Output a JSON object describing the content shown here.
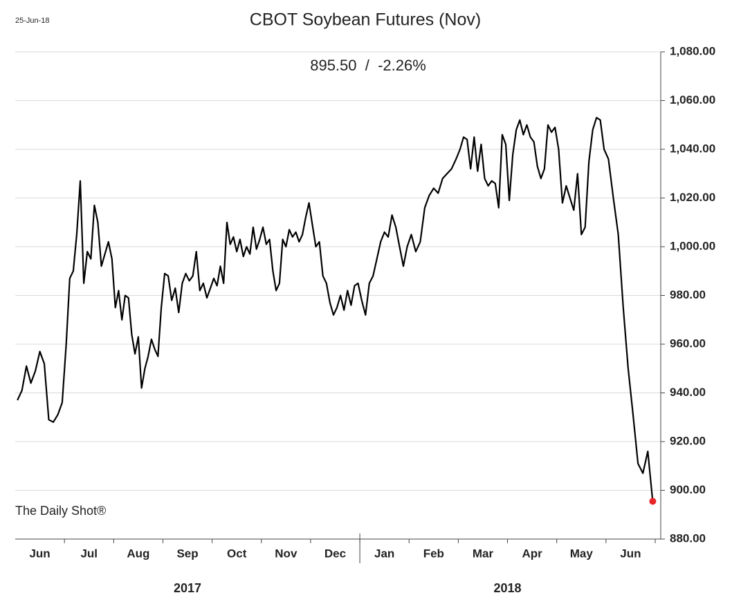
{
  "chart_data": {
    "type": "line",
    "date_label": "25-Jun-18",
    "title": "CBOT Soybean Futures (Nov)",
    "subtitle": "895.50  /  -2.26%",
    "source": "The Daily Shot®",
    "categories": [
      "Jun",
      "Jul",
      "Aug",
      "Sep",
      "Oct",
      "Nov",
      "Dec",
      "Jan",
      "Feb",
      "Mar",
      "Apr",
      "May",
      "Jun"
    ],
    "years": [
      "2017",
      "2018"
    ],
    "x": [
      "2017-06",
      "2017-06",
      "2017-06",
      "2017-06",
      "2017-06",
      "2017-06",
      "2017-06",
      "2017-06",
      "2017-06",
      "2017-06",
      "2017-06",
      "2017-07",
      "2017-07",
      "2017-07",
      "2017-07",
      "2017-07",
      "2017-07",
      "2017-07",
      "2017-07",
      "2017-07",
      "2017-07",
      "2017-07",
      "2017-07",
      "2017-07",
      "2017-07",
      "2017-08",
      "2017-08",
      "2017-08",
      "2017-08",
      "2017-08",
      "2017-08",
      "2017-08",
      "2017-08",
      "2017-08",
      "2017-08",
      "2017-08",
      "2017-08",
      "2017-08",
      "2017-08",
      "2017-08",
      "2017-09",
      "2017-09",
      "2017-09",
      "2017-09",
      "2017-09",
      "2017-09",
      "2017-09",
      "2017-09",
      "2017-09",
      "2017-09",
      "2017-09",
      "2017-09",
      "2017-09",
      "2017-09",
      "2017-10",
      "2017-10",
      "2017-10",
      "2017-10",
      "2017-10",
      "2017-10",
      "2017-10",
      "2017-10",
      "2017-10",
      "2017-10",
      "2017-10",
      "2017-10",
      "2017-10",
      "2017-10",
      "2017-10",
      "2017-11",
      "2017-11",
      "2017-11",
      "2017-11",
      "2017-11",
      "2017-11",
      "2017-11",
      "2017-11",
      "2017-11",
      "2017-11",
      "2017-11",
      "2017-11",
      "2017-11",
      "2017-11",
      "2017-11",
      "2017-12",
      "2017-12",
      "2017-12",
      "2017-12",
      "2017-12",
      "2017-12",
      "2017-12",
      "2017-12",
      "2017-12",
      "2017-12",
      "2017-12",
      "2017-12",
      "2017-12",
      "2017-12",
      "2018-01",
      "2018-01",
      "2018-01",
      "2018-01",
      "2018-01",
      "2018-01",
      "2018-01",
      "2018-01",
      "2018-01",
      "2018-01",
      "2018-01",
      "2018-01",
      "2018-01",
      "2018-02",
      "2018-02",
      "2018-02",
      "2018-02",
      "2018-02",
      "2018-02",
      "2018-02",
      "2018-02",
      "2018-02",
      "2018-02",
      "2018-02",
      "2018-03",
      "2018-03",
      "2018-03",
      "2018-03",
      "2018-03",
      "2018-03",
      "2018-03",
      "2018-03",
      "2018-03",
      "2018-03",
      "2018-03",
      "2018-03",
      "2018-03",
      "2018-03",
      "2018-04",
      "2018-04",
      "2018-04",
      "2018-04",
      "2018-04",
      "2018-04",
      "2018-04",
      "2018-04",
      "2018-04",
      "2018-04",
      "2018-04",
      "2018-04",
      "2018-04",
      "2018-04",
      "2018-05",
      "2018-05",
      "2018-05",
      "2018-05",
      "2018-05",
      "2018-05",
      "2018-05",
      "2018-05",
      "2018-05",
      "2018-05",
      "2018-05",
      "2018-05",
      "2018-05",
      "2018-06",
      "2018-06",
      "2018-06",
      "2018-06",
      "2018-06",
      "2018-06",
      "2018-06",
      "2018-06",
      "2018-06",
      "2018-06"
    ],
    "values": [
      937,
      941,
      951,
      944,
      949,
      957,
      952,
      929,
      928,
      931,
      936,
      960,
      987,
      990,
      1005,
      1027,
      985,
      998,
      995,
      1017,
      1010,
      992,
      997,
      1002,
      995,
      975,
      982,
      970,
      980,
      979,
      964,
      956,
      963,
      942,
      950,
      955,
      962,
      958,
      955,
      975,
      989,
      988,
      978,
      983,
      973,
      985,
      989,
      986,
      988,
      998,
      982,
      985,
      979,
      983,
      987,
      984,
      992,
      985,
      1010,
      1001,
      1004,
      998,
      1003,
      996,
      1000,
      997,
      1008,
      999,
      1003,
      1008,
      1001,
      1003,
      990,
      982,
      985,
      1003,
      1000,
      1007,
      1004,
      1006,
      1002,
      1005,
      1012,
      1018,
      1009,
      1000,
      1002,
      988,
      985,
      977,
      972,
      975,
      980,
      974,
      982,
      976,
      984,
      985,
      978,
      972,
      985,
      988,
      995,
      1002,
      1006,
      1004,
      1013,
      1008,
      1000,
      992,
      1000,
      1005,
      998,
      1002,
      1016,
      1021,
      1024,
      1022,
      1028,
      1030,
      1032,
      1036,
      1040,
      1045,
      1044,
      1032,
      1045,
      1031,
      1042,
      1028,
      1025,
      1027,
      1026,
      1016,
      1046,
      1042,
      1019,
      1038,
      1048,
      1052,
      1046,
      1050,
      1045,
      1043,
      1033,
      1028,
      1032,
      1050,
      1047,
      1049,
      1040,
      1018,
      1025,
      1020,
      1015,
      1030,
      1005,
      1008,
      1035,
      1048,
      1053,
      1052,
      1040,
      1036,
      1020,
      1005,
      975,
      950,
      931,
      911,
      907,
      916,
      895.5
    ],
    "color": "#000000",
    "last_point_color": "#e8262a",
    "ylim": [
      880,
      1080
    ],
    "yticks": [
      {
        "value": 880,
        "label": "880.00"
      },
      {
        "value": 900,
        "label": "900.00"
      },
      {
        "value": 920,
        "label": "920.00"
      },
      {
        "value": 940,
        "label": "940.00"
      },
      {
        "value": 960,
        "label": "960.00"
      },
      {
        "value": 980,
        "label": "980.00"
      },
      {
        "value": 1000,
        "label": "1,000.00"
      },
      {
        "value": 1020,
        "label": "1,020.00"
      },
      {
        "value": 1040,
        "label": "1,040.00"
      },
      {
        "value": 1060,
        "label": "1,060.00"
      },
      {
        "value": 1080,
        "label": "1,080.00"
      }
    ],
    "grid": true
  }
}
